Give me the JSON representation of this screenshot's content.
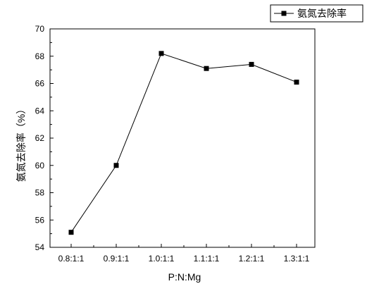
{
  "chart_data": {
    "type": "line",
    "title": "",
    "xlabel": "P:N:Mg",
    "ylabel": "氨氮去除率（%）",
    "categories": [
      "0.8:1:1",
      "0.9:1:1",
      "1.0:1:1",
      "1.1:1:1",
      "1.2:1:1",
      "1.3:1:1"
    ],
    "series": [
      {
        "name": "氨氮去除率",
        "values": [
          55.1,
          60.0,
          68.2,
          67.1,
          67.4,
          66.1
        ],
        "color": "#000000",
        "marker": "square"
      }
    ],
    "ylim": [
      54,
      70
    ],
    "yticks": [
      54,
      56,
      58,
      60,
      62,
      64,
      66,
      68,
      70
    ],
    "grid": false,
    "legend_position": "top-right"
  }
}
